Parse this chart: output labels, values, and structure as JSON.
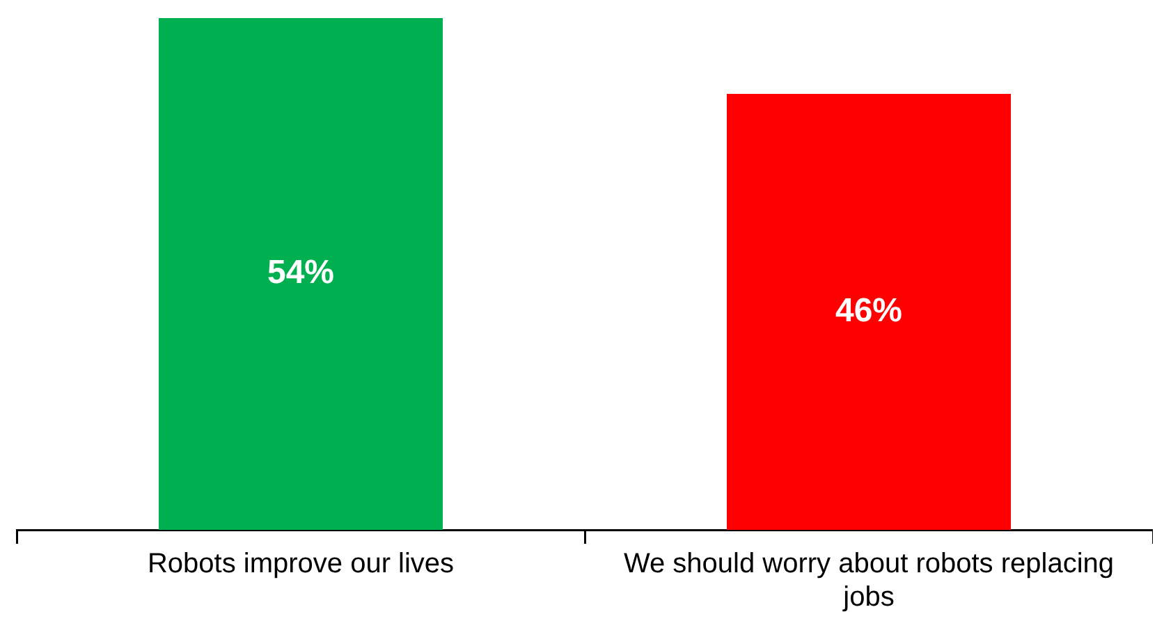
{
  "chart_data": {
    "type": "bar",
    "categories": [
      "Robots improve our lives",
      "We should worry about robots replacing jobs"
    ],
    "values": [
      54,
      46
    ],
    "colors": [
      "#00b050",
      "#ff0000"
    ],
    "value_labels": [
      "54%",
      "46%"
    ],
    "grid": false,
    "legend": false,
    "tick_labels": "x"
  }
}
